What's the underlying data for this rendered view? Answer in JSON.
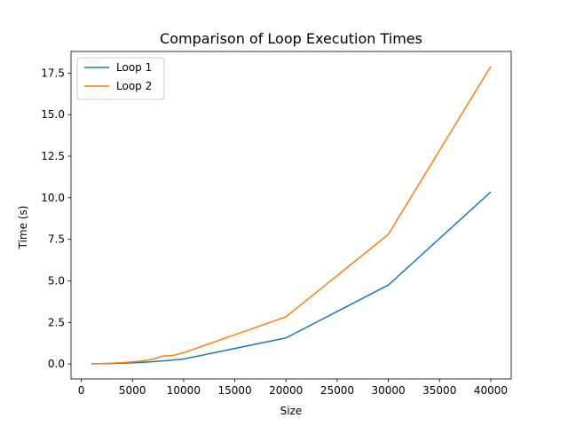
{
  "chart_data": {
    "type": "line",
    "title": "Comparison of Loop Execution Times",
    "xlabel": "Size",
    "ylabel": "Time (s)",
    "xlim": [
      -1000,
      42000
    ],
    "ylim": [
      -0.9,
      18.8
    ],
    "xticks": [
      0,
      5000,
      10000,
      15000,
      20000,
      25000,
      30000,
      35000,
      40000
    ],
    "yticks": [
      0.0,
      2.5,
      5.0,
      7.5,
      10.0,
      12.5,
      15.0,
      17.5
    ],
    "xtick_labels": [
      "0",
      "5000",
      "10000",
      "15000",
      "20000",
      "25000",
      "30000",
      "35000",
      "40000"
    ],
    "ytick_labels": [
      "0.0",
      "2.5",
      "5.0",
      "7.5",
      "10.0",
      "12.5",
      "15.0",
      "17.5"
    ],
    "grid": false,
    "legend_position": "upper-left",
    "x": [
      1000,
      2000,
      3000,
      4000,
      5000,
      6000,
      7000,
      8000,
      9000,
      10000,
      20000,
      30000,
      40000
    ],
    "series": [
      {
        "name": "Loop 1",
        "color": "#1f77b4",
        "values": [
          0.01,
          0.02,
          0.03,
          0.05,
          0.07,
          0.1,
          0.14,
          0.19,
          0.24,
          0.3,
          1.57,
          4.75,
          10.35
        ]
      },
      {
        "name": "Loop 2",
        "color": "#ff7f0e",
        "values": [
          0.02,
          0.03,
          0.05,
          0.08,
          0.13,
          0.19,
          0.28,
          0.48,
          0.52,
          0.68,
          2.84,
          7.8,
          17.9
        ]
      }
    ]
  }
}
